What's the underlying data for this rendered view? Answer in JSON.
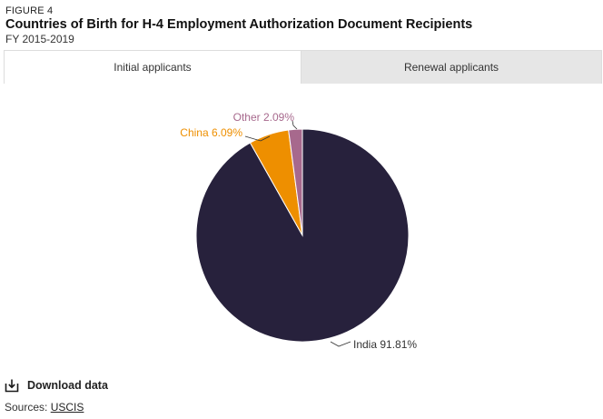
{
  "figure": {
    "label": "FIGURE 4",
    "title": "Countries of Birth for H-4 Employment Authorization Document Recipients",
    "subtitle": "FY 2015-2019"
  },
  "tabs": [
    {
      "label": "Initial applicants",
      "active": true
    },
    {
      "label": "Renewal applicants",
      "active": false
    }
  ],
  "chart_data": {
    "type": "pie",
    "title": "Countries of Birth for H-4 Employment Authorization Document Recipients",
    "subtitle": "FY 2015-2019",
    "series": [
      {
        "name": "Initial applicants",
        "slices": [
          {
            "label": "India",
            "value": 91.81,
            "display": "India 91.81%",
            "color": "#27213c"
          },
          {
            "label": "China",
            "value": 6.09,
            "display": "China 6.09%",
            "color": "#ee8f00"
          },
          {
            "label": "Other",
            "value": 2.09,
            "display": "Other 2.09%",
            "color": "#a7698d"
          }
        ]
      }
    ]
  },
  "footer": {
    "download_label": "Download data",
    "sources_prefix": "Sources: ",
    "sources_link": "USCIS"
  },
  "icons": {
    "download": "download-icon"
  }
}
